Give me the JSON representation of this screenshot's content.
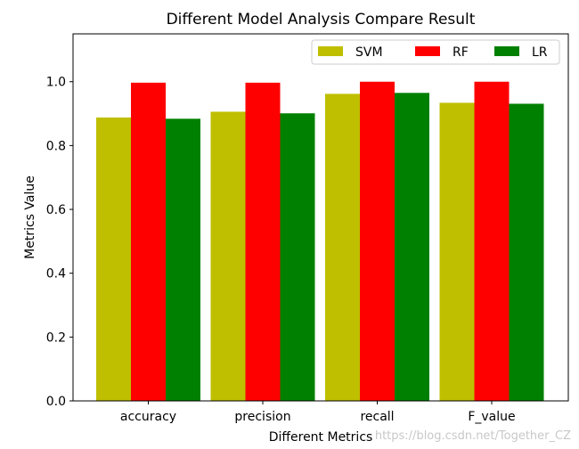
{
  "chart_data": {
    "type": "bar",
    "title": "Different Model Analysis Compare Result",
    "xlabel": "Different Metrics",
    "ylabel": "Metrics Value",
    "categories": [
      "accuracy",
      "precision",
      "recall",
      "F_value"
    ],
    "series": [
      {
        "name": "SVM",
        "color": "#bfbf00",
        "values": [
          0.888,
          0.906,
          0.962,
          0.934
        ]
      },
      {
        "name": "RF",
        "color": "#ff0000",
        "values": [
          0.997,
          0.997,
          1.0,
          1.0
        ]
      },
      {
        "name": "LR",
        "color": "#008000",
        "values": [
          0.884,
          0.901,
          0.965,
          0.931
        ]
      }
    ],
    "ylim": [
      0,
      1.15
    ],
    "yticks": [
      "0.0",
      "0.2",
      "0.4",
      "0.6",
      "0.8",
      "1.0"
    ],
    "grid": false,
    "legend_position": "top-right"
  },
  "watermark": "https://blog.csdn.net/Together_CZ"
}
